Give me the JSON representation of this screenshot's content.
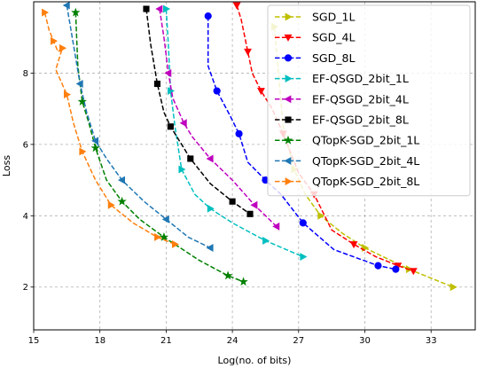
{
  "chart_data": {
    "type": "line",
    "title": "",
    "xlabel": "Log(no. of bits)",
    "ylabel": "Loss",
    "xlim": [
      15,
      35
    ],
    "ylim": [
      0.8,
      10
    ],
    "xticks": [
      15,
      18,
      21,
      24,
      27,
      30,
      33
    ],
    "xtick_labels": [
      "15",
      "18",
      "21",
      "24",
      "27",
      "30",
      "33"
    ],
    "yticks": [
      2,
      4,
      6,
      8
    ],
    "ytick_labels": [
      "2",
      "4",
      "6",
      "8"
    ],
    "grid": true,
    "legend_position": "top-right",
    "series": [
      {
        "name": "SGD_1L",
        "color": "#bfbf00",
        "marker": "tri-right",
        "x": [
          25.9,
          26.3,
          26.8,
          27.3,
          28.0,
          29.0,
          30.0,
          31.0,
          32.0,
          33.0,
          34.0
        ],
        "y": [
          9.3,
          6.5,
          5.3,
          4.6,
          4.0,
          3.5,
          3.1,
          2.8,
          2.5,
          2.25,
          2.0
        ]
      },
      {
        "name": "SGD_4L",
        "color": "#ff0000",
        "marker": "triangle-down",
        "x": [
          24.2,
          24.4,
          24.7,
          24.9,
          25.3,
          25.8,
          26.3,
          27.0,
          27.7,
          28.5,
          29.5,
          30.5,
          31.5,
          32.2
        ],
        "y": [
          9.9,
          9.5,
          8.6,
          8.0,
          7.5,
          7.0,
          6.3,
          5.2,
          4.6,
          3.6,
          3.2,
          2.85,
          2.6,
          2.45
        ]
      },
      {
        "name": "SGD_8L",
        "color": "#0000ff",
        "marker": "circle",
        "x": [
          22.9,
          22.9,
          23.3,
          23.9,
          24.3,
          24.7,
          25.5,
          26.2,
          27.2,
          28.6,
          30.6,
          31.4
        ],
        "y": [
          9.6,
          8.2,
          7.5,
          6.8,
          6.3,
          5.5,
          5.0,
          4.6,
          3.8,
          3.05,
          2.6,
          2.5
        ]
      },
      {
        "name": "EF-QSGD_2bit_1L",
        "color": "#00bfbf",
        "marker": "tri-right",
        "x": [
          21.0,
          21.1,
          21.2,
          21.4,
          21.7,
          22.3,
          23.0,
          24.0,
          25.5,
          27.2
        ],
        "y": [
          9.8,
          8.8,
          7.5,
          6.5,
          5.3,
          4.6,
          4.2,
          3.8,
          3.3,
          2.85
        ]
      },
      {
        "name": "EF-QSGD_2bit_4L",
        "color": "#bf00bf",
        "marker": "tri-left",
        "x": [
          20.7,
          20.9,
          21.1,
          21.3,
          21.8,
          22.2,
          23.0,
          24.0,
          25.0,
          26.0
        ],
        "y": [
          9.8,
          9.0,
          8.0,
          7.3,
          6.6,
          6.2,
          5.6,
          5.0,
          4.3,
          3.7
        ]
      },
      {
        "name": "EF-QSGD_2bit_8L",
        "color": "#000000",
        "marker": "square",
        "x": [
          20.1,
          20.3,
          20.6,
          20.9,
          21.2,
          21.6,
          22.1,
          23.0,
          24.0,
          24.8
        ],
        "y": [
          9.8,
          8.8,
          7.7,
          6.9,
          6.5,
          6.1,
          5.6,
          4.9,
          4.4,
          4.05
        ]
      },
      {
        "name": "QTopK-SGD_2bit_1L",
        "color": "#008000",
        "marker": "star",
        "x": [
          16.9,
          17.0,
          17.2,
          17.5,
          17.8,
          18.3,
          19.0,
          19.8,
          20.9,
          22.5,
          23.8,
          24.5
        ],
        "y": [
          9.7,
          8.2,
          7.2,
          6.6,
          5.9,
          5.0,
          4.4,
          3.9,
          3.4,
          2.75,
          2.32,
          2.15
        ]
      },
      {
        "name": "QTopK-SGD_2bit_4L",
        "color": "#1f77b4",
        "marker": "tri-left",
        "x": [
          16.5,
          16.8,
          17.1,
          17.4,
          17.8,
          18.3,
          19.0,
          20.0,
          21.0,
          22.0,
          23.0
        ],
        "y": [
          9.9,
          8.8,
          7.7,
          6.9,
          6.1,
          5.6,
          5.0,
          4.4,
          3.9,
          3.4,
          3.1
        ]
      },
      {
        "name": "QTopK-SGD_2bit_8L",
        "color": "#ff7f0e",
        "marker": "tri-right",
        "x": [
          15.5,
          15.7,
          15.9,
          16.1,
          16.3,
          16.0,
          16.5,
          16.8,
          17.2,
          17.8,
          18.5,
          19.5,
          20.6,
          21.4
        ],
        "y": [
          9.7,
          9.2,
          8.9,
          8.6,
          8.7,
          8.1,
          7.4,
          6.6,
          5.8,
          5.0,
          4.3,
          3.8,
          3.4,
          3.2
        ]
      }
    ]
  }
}
